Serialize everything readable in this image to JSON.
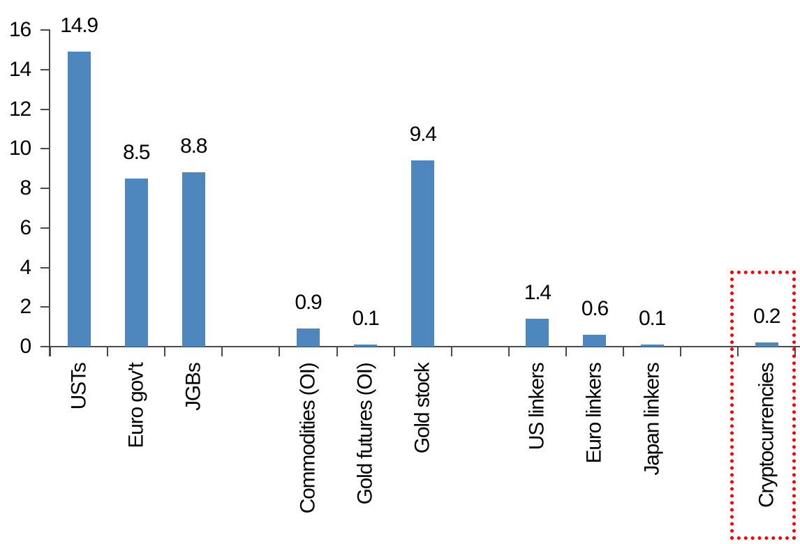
{
  "chart_data": {
    "type": "bar",
    "categories": [
      "USTs",
      "Euro gov't",
      "JGBs",
      "",
      "Commodities (OI)",
      "Gold futures (OI)",
      "Gold stock",
      "",
      "US linkers",
      "Euro linkers",
      "Japan linkers",
      "",
      "Cryptocurrencies"
    ],
    "values": [
      14.9,
      8.5,
      8.8,
      null,
      0.9,
      0.1,
      9.4,
      null,
      1.4,
      0.6,
      0.1,
      null,
      0.2
    ],
    "data_labels": [
      "14.9",
      "8.5",
      "8.8",
      null,
      "0.9",
      "0.1",
      "9.4",
      null,
      "1.4",
      "0.6",
      "0.1",
      null,
      "0.2"
    ],
    "title": "",
    "xlabel": "",
    "ylabel": "",
    "ylim": [
      0,
      16
    ],
    "yticks": [
      0,
      2,
      4,
      6,
      8,
      10,
      12,
      14,
      16
    ],
    "grid": false,
    "legend": false,
    "bar_color": "#4E86BE",
    "axis_color": "#4a4a4a",
    "text_color": "#000000",
    "highlight": {
      "category": "Cryptocurrencies",
      "style": "red-dotted-box",
      "color": "#FF0000"
    }
  }
}
